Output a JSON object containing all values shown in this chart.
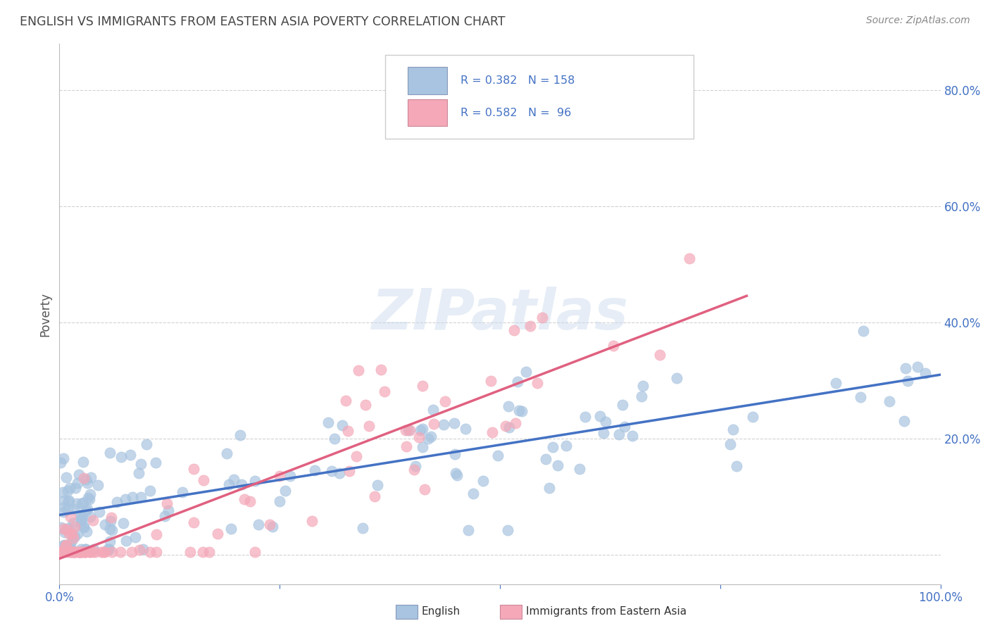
{
  "title": "ENGLISH VS IMMIGRANTS FROM EASTERN ASIA POVERTY CORRELATION CHART",
  "source": "Source: ZipAtlas.com",
  "ylabel": "Poverty",
  "xlim": [
    0,
    1
  ],
  "ylim": [
    -0.05,
    0.88
  ],
  "ytick_positions": [
    0.0,
    0.2,
    0.4,
    0.6,
    0.8
  ],
  "yticklabels": [
    "",
    "20.0%",
    "40.0%",
    "60.0%",
    "80.0%"
  ],
  "english_color": "#a8c4e0",
  "immigrants_color": "#f4a8b8",
  "english_line_color": "#4472c4",
  "immigrants_line_color": "#e06080",
  "R_english": 0.382,
  "N_english": 158,
  "R_immigrants": 0.582,
  "N_immigrants": 96,
  "watermark": "ZIPatlas",
  "legend_label_english": "English",
  "legend_label_immigrants": "Immigrants from Eastern Asia"
}
